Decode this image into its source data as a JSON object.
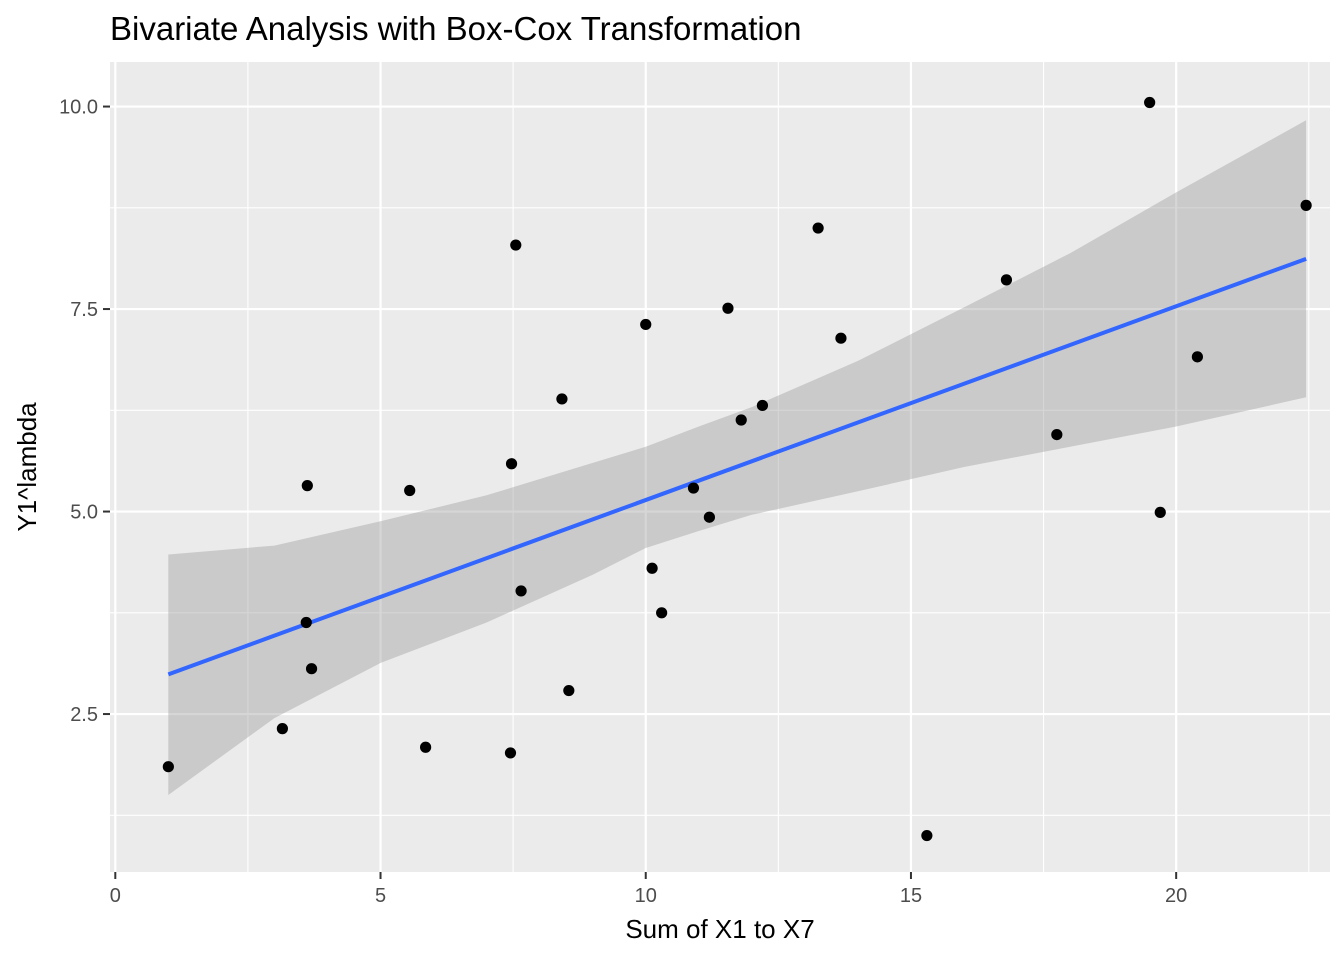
{
  "chart_data": {
    "type": "scatter",
    "title": "Bivariate Analysis with Box-Cox Transformation",
    "xlabel": "Sum of X1 to X7",
    "ylabel": "Y1^lambda",
    "xlim": [
      -0.1,
      22.9
    ],
    "ylim": [
      0.55,
      10.55
    ],
    "x_ticks": [
      0,
      5,
      10,
      15,
      20
    ],
    "x_tick_labels": [
      "0",
      "5",
      "10",
      "15",
      "20"
    ],
    "y_ticks": [
      2.5,
      5.0,
      7.5,
      10.0
    ],
    "y_tick_labels": [
      "2.5",
      "5.0",
      "7.5",
      "10.0"
    ],
    "grid": true,
    "series": [
      {
        "type": "points",
        "color": "#000000",
        "x": [
          1.0,
          3.15,
          3.6,
          3.62,
          3.7,
          5.55,
          5.85,
          7.45,
          7.47,
          7.55,
          7.65,
          8.42,
          8.55,
          10.0,
          10.12,
          10.3,
          10.9,
          11.2,
          11.55,
          11.8,
          12.2,
          13.25,
          13.68,
          15.3,
          16.8,
          17.75,
          19.5,
          19.7,
          20.4,
          22.45
        ],
        "y": [
          1.85,
          2.32,
          3.63,
          5.32,
          3.06,
          5.26,
          2.09,
          2.02,
          5.59,
          8.29,
          4.02,
          6.39,
          2.79,
          7.31,
          4.3,
          3.75,
          5.29,
          4.93,
          7.51,
          6.13,
          6.31,
          8.5,
          7.14,
          1.0,
          7.86,
          5.95,
          10.05,
          4.99,
          6.91,
          8.78
        ]
      },
      {
        "type": "regression",
        "color": "#3366FF",
        "x": [
          1.0,
          22.45
        ],
        "y": [
          2.99,
          8.12
        ]
      }
    ],
    "confidence_band": {
      "color": "#999999",
      "x": [
        1.0,
        3.0,
        5.0,
        7.0,
        9.0,
        10.0,
        11.0,
        12.0,
        14.0,
        16.0,
        18.0,
        20.0,
        22.45
      ],
      "lower": [
        1.5,
        2.45,
        3.13,
        3.63,
        4.22,
        4.55,
        4.76,
        4.96,
        5.25,
        5.55,
        5.8,
        6.05,
        6.41
      ],
      "upper": [
        4.47,
        4.58,
        4.88,
        5.2,
        5.6,
        5.8,
        6.05,
        6.29,
        6.86,
        7.52,
        8.19,
        8.94,
        9.83
      ]
    }
  }
}
